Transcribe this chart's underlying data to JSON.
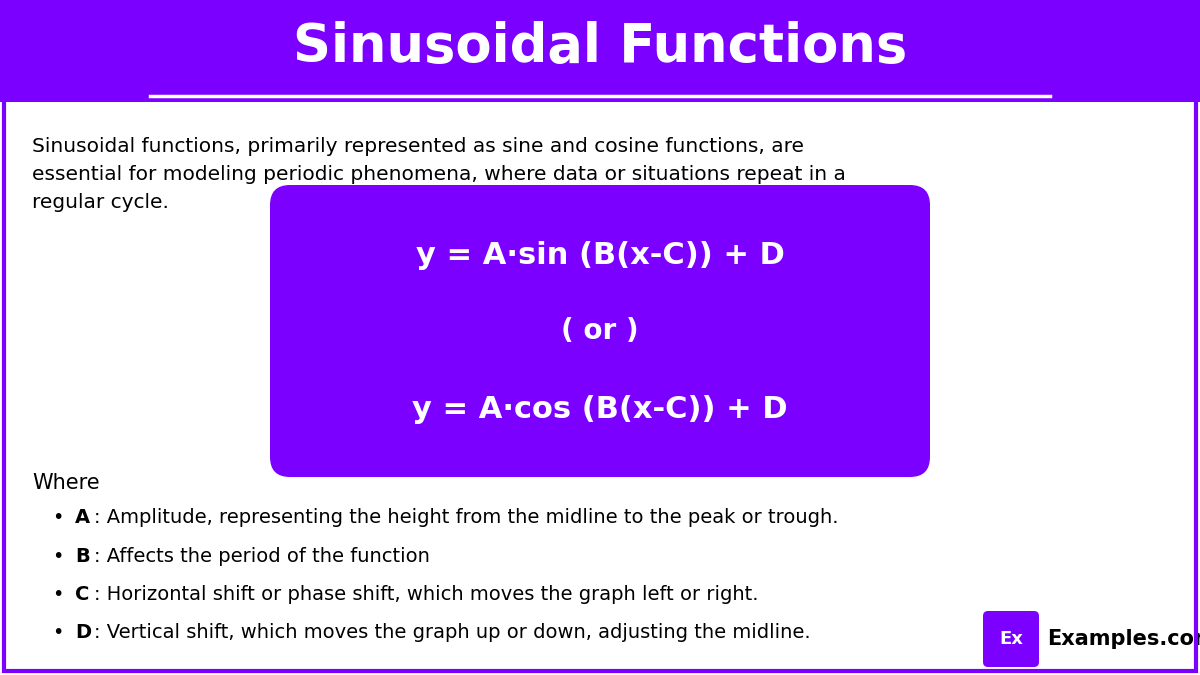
{
  "title": "Sinusoidal Functions",
  "title_color": "#ffffff",
  "header_bg_color": "#7B00FF",
  "body_bg_color": "#ffffff",
  "border_color": "#7B00FF",
  "intro_text": "Sinusoidal functions, primarily represented as sine and cosine functions, are\nessential for modeling periodic phenomena, where data or situations repeat in a\nregular cycle.",
  "formula_bg_color": "#7B00FF",
  "formula_line1": "y = A·sin (B(x-C)) + D",
  "formula_line2": "( or )",
  "formula_line3": "y = A·cos (B(x-C)) + D",
  "where_label": "Where",
  "bullet_items": [
    {
      "bold": "A",
      "rest": ": Amplitude, representing the height from the midline to the peak or trough."
    },
    {
      "bold": "B",
      "rest": ": Affects the period of the function"
    },
    {
      "bold": "C",
      "rest": ": Horizontal shift or phase shift, which moves the graph left or right."
    },
    {
      "bold": "D",
      "rest": ": Vertical shift, which moves the graph up or down, adjusting the midline."
    }
  ],
  "logo_bg_color": "#7B00FF",
  "logo_text": "Ex",
  "logo_label": "Examples.com",
  "purple": "#7B00FF"
}
